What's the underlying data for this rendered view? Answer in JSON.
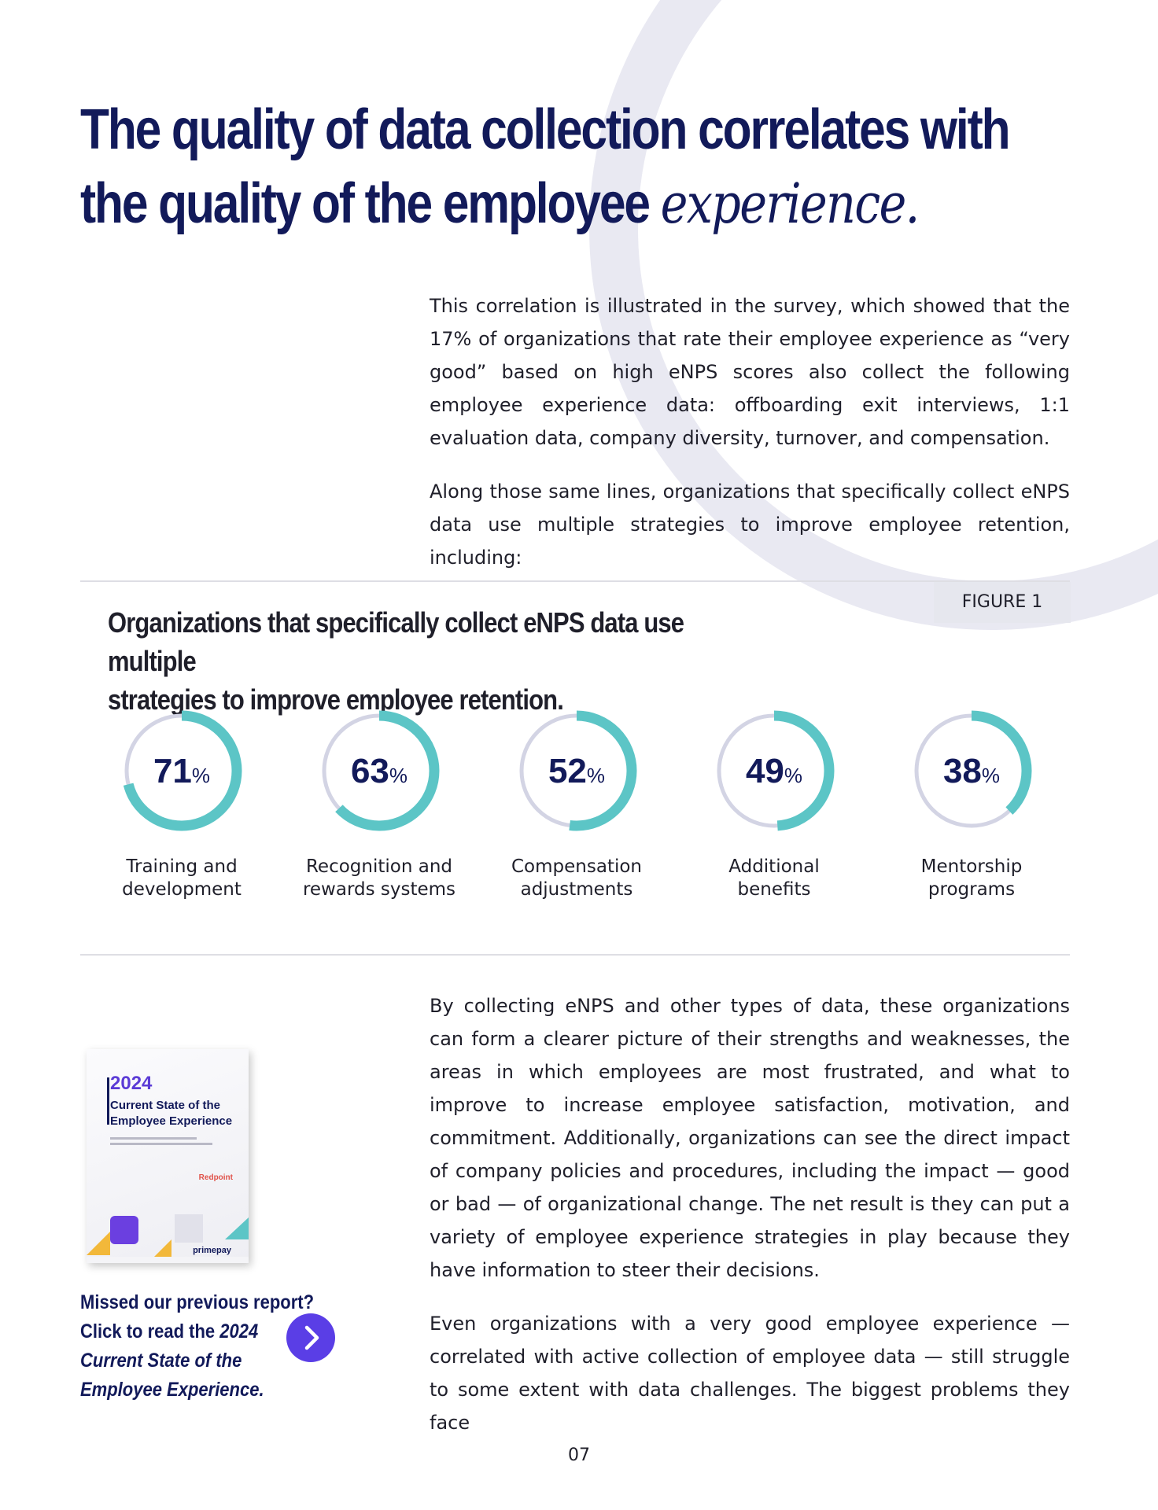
{
  "headline": {
    "line1": "The quality of data collection correlates with",
    "line2_plain": "the quality of the employee ",
    "line2_accent": "experience."
  },
  "intro": {
    "paragraphs": [
      "This correlation is illustrated in the survey, which showed that the 17% of organizations that rate their employee experience as “very good” based on high eNPS scores also collect the following employee experience data: offboarding exit interviews, 1:1 evaluation data, company diversity, turnover, and compensation.",
      "Along those same lines, organizations that specifically collect eNPS data use multiple strategies to improve employee retention, including:"
    ]
  },
  "figure": {
    "tag": "FIGURE 1",
    "title_line1": "Organizations that specifically collect eNPS data use multiple",
    "title_line2": "strategies to improve employee retention."
  },
  "colors": {
    "ring_fill": "#5cc5c6",
    "ring_track": "#d3d4e4",
    "headline": "#121a5a",
    "button": "#5a3ee6"
  },
  "chart_data": {
    "type": "donut",
    "unit": "%",
    "items": [
      {
        "label_line1": "Training and",
        "label_line2": "development",
        "value": 71
      },
      {
        "label_line1": "Recognition and",
        "label_line2": "rewards systems",
        "value": 63
      },
      {
        "label_line1": "Compensation",
        "label_line2": "adjustments",
        "value": 52
      },
      {
        "label_line1": "Additional",
        "label_line2": "benefits",
        "value": 49
      },
      {
        "label_line1": "Mentorship",
        "label_line2": "programs",
        "value": 38
      }
    ]
  },
  "main": {
    "paragraphs": [
      "By collecting eNPS and other types of data, these organizations can form a clearer picture of their strengths and weaknesses, the areas in which employees are most frustrated, and what to improve to increase employee satisfaction, motivation, and commitment. Additionally, organizations can see the direct impact of company policies and procedures, including the impact — good or bad — of organizational change. The net result is they can put a variety of employee experience strategies in play because they have information to steer their decisions.",
      "Even organizations with a very good employee experience — correlated with active collection of employee data — still struggle to some extent with data challenges. The biggest problems they face"
    ]
  },
  "report_cover": {
    "year": "2024",
    "title": "Current State of the Employee Experience",
    "partner": "Redpoint",
    "brand": "primepay"
  },
  "cta": {
    "text_plain": "Missed our previous report? Click to read the ",
    "text_emphasis": "2024 Current State of the Employee Experience.",
    "button_icon": "chevron-right-icon"
  },
  "page_number": "07"
}
